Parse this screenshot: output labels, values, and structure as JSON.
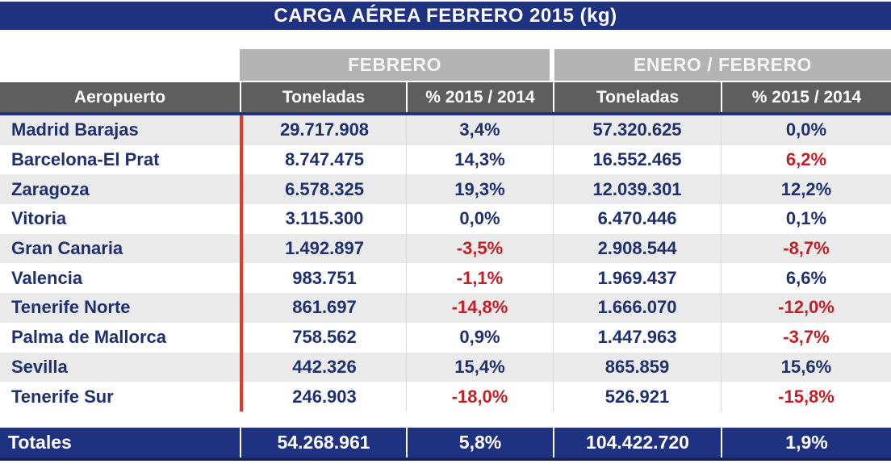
{
  "chart_data": {
    "type": "table",
    "title": "CARGA AÉREA FEBRERO 2015 (kg)",
    "group_headers": {
      "left": "FEBRERO",
      "right": "ENERO / FEBRERO"
    },
    "columns": [
      "Aeropuerto",
      "Toneladas",
      "% 2015 / 2014",
      "Toneladas",
      "% 2015 / 2014"
    ],
    "rows": [
      {
        "airport": "Madrid Barajas",
        "values": [
          "29.717.908",
          "3,4%",
          "57.320.625",
          "0,0%"
        ],
        "colors": [
          "navy",
          "navy",
          "navy",
          "navy"
        ]
      },
      {
        "airport": "Barcelona-El Prat",
        "values": [
          "8.747.475",
          "14,3%",
          "16.552.465",
          "6,2%"
        ],
        "colors": [
          "navy",
          "navy",
          "navy",
          "red"
        ]
      },
      {
        "airport": "Zaragoza",
        "values": [
          "6.578.325",
          "19,3%",
          "12.039.301",
          "12,2%"
        ],
        "colors": [
          "navy",
          "navy",
          "navy",
          "navy"
        ]
      },
      {
        "airport": "Vitoria",
        "values": [
          "3.115.300",
          "0,0%",
          "6.470.446",
          "0,1%"
        ],
        "colors": [
          "navy",
          "navy",
          "navy",
          "navy"
        ]
      },
      {
        "airport": "Gran Canaria",
        "values": [
          "1.492.897",
          "-3,5%",
          "2.908.544",
          "-8,7%"
        ],
        "colors": [
          "navy",
          "red",
          "navy",
          "red"
        ]
      },
      {
        "airport": "Valencia",
        "values": [
          "983.751",
          "-1,1%",
          "1.969.437",
          "6,6%"
        ],
        "colors": [
          "navy",
          "red",
          "navy",
          "navy"
        ]
      },
      {
        "airport": "Tenerife Norte",
        "values": [
          "861.697",
          "-14,8%",
          "1.666.070",
          "-12,0%"
        ],
        "colors": [
          "navy",
          "red",
          "navy",
          "red"
        ]
      },
      {
        "airport": "Palma de Mallorca",
        "values": [
          "758.562",
          "0,9%",
          "1.447.963",
          "-3,7%"
        ],
        "colors": [
          "navy",
          "navy",
          "navy",
          "red"
        ]
      },
      {
        "airport": "Sevilla",
        "values": [
          "442.326",
          "15,4%",
          "865.859",
          "15,6%"
        ],
        "colors": [
          "navy",
          "navy",
          "navy",
          "navy"
        ]
      },
      {
        "airport": "Tenerife Sur",
        "values": [
          "246.903",
          "-18,0%",
          "526.921",
          "-15,8%"
        ],
        "colors": [
          "navy",
          "red",
          "navy",
          "red"
        ]
      }
    ],
    "totals": {
      "label": "Totales",
      "values": [
        "54.268.961",
        "5,8%",
        "104.422.720",
        "1,9%"
      ]
    },
    "layout": {
      "legend_position": "none",
      "grid": "striped-rows",
      "accent_navy": "#1f3181",
      "header_gray": "#5e5e5e",
      "band_gray": "#b3b3b3",
      "stripe_gray": "#eaeaea",
      "negative_red": "#c41e25",
      "divider_red": "#e8362b"
    }
  }
}
